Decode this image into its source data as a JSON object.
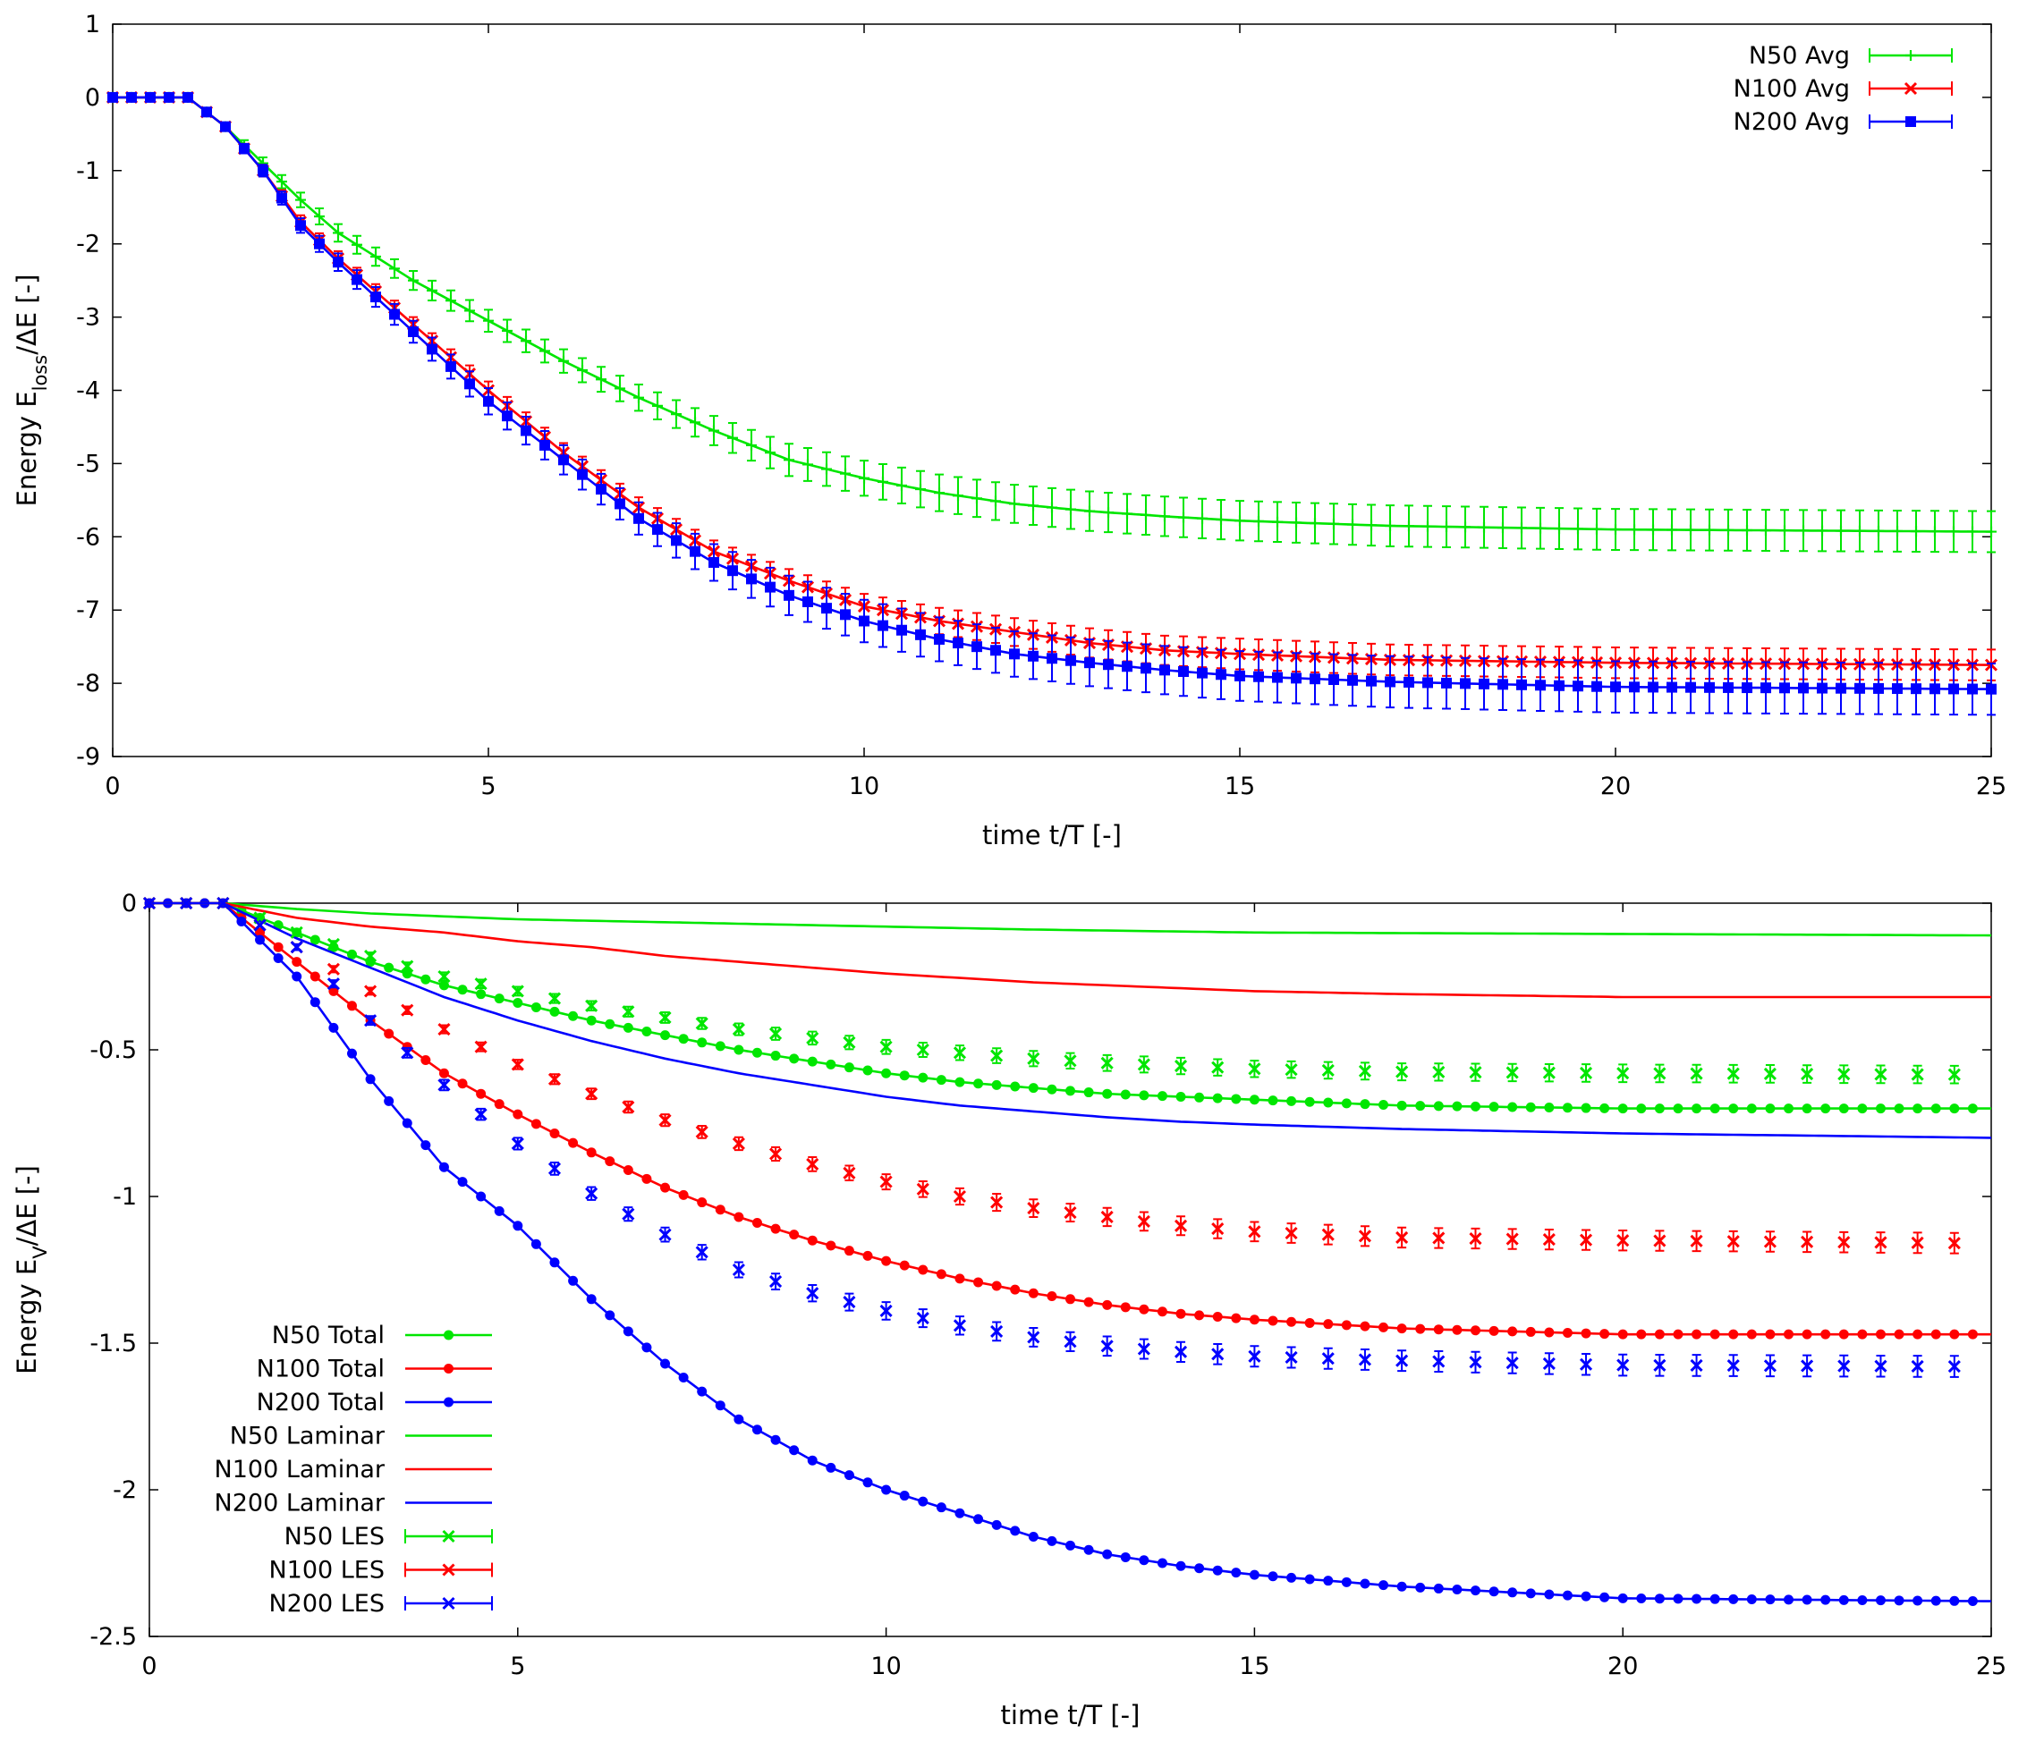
{
  "chart_data": [
    {
      "type": "line",
      "xlabel": "time t/T [-]",
      "ylabel_parts": [
        "Energy E",
        "loss",
        "/ΔE [-]"
      ],
      "xlim": [
        0,
        25
      ],
      "ylim": [
        -9,
        1
      ],
      "xticks": [
        "0",
        "5",
        "10",
        "15",
        "20",
        "25"
      ],
      "yticks": [
        "1",
        "0",
        "-1",
        "-2",
        "-3",
        "-4",
        "-5",
        "-6",
        "-7",
        "-8",
        "-9"
      ],
      "grid": false,
      "legend_position": "top-right",
      "series": [
        {
          "name": "N50 Avg",
          "color": "#00e600",
          "marker": "plus",
          "error_bars": true,
          "x": [
            0,
            1,
            1.5,
            2,
            2.5,
            3,
            4,
            5,
            6,
            7,
            8,
            9,
            10,
            11,
            12,
            13,
            14,
            15,
            17,
            20,
            25
          ],
          "y": [
            0,
            0,
            -0.4,
            -0.9,
            -1.4,
            -1.85,
            -2.5,
            -3.05,
            -3.6,
            -4.1,
            -4.55,
            -4.95,
            -5.2,
            -5.4,
            -5.55,
            -5.65,
            -5.72,
            -5.78,
            -5.85,
            -5.9,
            -5.93
          ],
          "error": [
            0,
            0,
            0.05,
            0.08,
            0.1,
            0.12,
            0.13,
            0.15,
            0.16,
            0.18,
            0.2,
            0.22,
            0.24,
            0.25,
            0.26,
            0.27,
            0.27,
            0.27,
            0.28,
            0.28,
            0.28
          ]
        },
        {
          "name": "N100 Avg",
          "color": "#ff0000",
          "marker": "cross",
          "error_bars": true,
          "x": [
            0,
            1,
            1.5,
            2,
            2.5,
            3,
            4,
            5,
            6,
            7,
            8,
            9,
            10,
            11,
            12,
            13,
            14,
            15,
            17,
            20,
            25
          ],
          "y": [
            0,
            0,
            -0.4,
            -1.0,
            -1.7,
            -2.2,
            -3.1,
            -4.0,
            -4.85,
            -5.6,
            -6.2,
            -6.6,
            -6.95,
            -7.15,
            -7.3,
            -7.45,
            -7.55,
            -7.6,
            -7.68,
            -7.72,
            -7.75
          ],
          "error": [
            0,
            0,
            0.05,
            0.08,
            0.09,
            0.1,
            0.1,
            0.12,
            0.13,
            0.14,
            0.15,
            0.16,
            0.17,
            0.18,
            0.19,
            0.2,
            0.2,
            0.21,
            0.21,
            0.21,
            0.21
          ]
        },
        {
          "name": "N200 Avg",
          "color": "#0000ff",
          "marker": "square",
          "error_bars": true,
          "x": [
            0,
            1,
            1.5,
            2,
            2.5,
            3,
            4,
            5,
            6,
            7,
            8,
            9,
            10,
            11,
            12,
            13,
            14,
            15,
            17,
            20,
            25
          ],
          "y": [
            0,
            0,
            -0.4,
            -1.0,
            -1.75,
            -2.25,
            -3.2,
            -4.15,
            -4.95,
            -5.75,
            -6.35,
            -6.8,
            -7.15,
            -7.4,
            -7.6,
            -7.72,
            -7.82,
            -7.9,
            -7.98,
            -8.05,
            -8.08
          ],
          "error": [
            0,
            0,
            0.05,
            0.08,
            0.1,
            0.12,
            0.15,
            0.18,
            0.2,
            0.22,
            0.25,
            0.27,
            0.29,
            0.3,
            0.31,
            0.32,
            0.33,
            0.34,
            0.35,
            0.35,
            0.35
          ]
        }
      ]
    },
    {
      "type": "line",
      "xlabel": "time t/T [-]",
      "ylabel_parts": [
        "Energy E",
        "V",
        "/ΔE [-]"
      ],
      "xlim": [
        0,
        25
      ],
      "ylim": [
        -2.5,
        0
      ],
      "xticks": [
        "0",
        "5",
        "10",
        "15",
        "20",
        "25"
      ],
      "yticks": [
        "0",
        "-0.5",
        "-1",
        "-1.5",
        "-2",
        "-2.5"
      ],
      "grid": false,
      "legend_position": "bottom-left",
      "series": [
        {
          "name": "N50 Total",
          "color": "#00e600",
          "style": "line-dots",
          "x": [
            0,
            1,
            2,
            3,
            4,
            5,
            6,
            7,
            8,
            9,
            10,
            11,
            12,
            13,
            14,
            15,
            17,
            20,
            25
          ],
          "y": [
            0,
            0,
            -0.1,
            -0.2,
            -0.28,
            -0.34,
            -0.4,
            -0.45,
            -0.5,
            -0.54,
            -0.58,
            -0.61,
            -0.63,
            -0.65,
            -0.66,
            -0.67,
            -0.69,
            -0.7,
            -0.7
          ]
        },
        {
          "name": "N100 Total",
          "color": "#ff0000",
          "style": "line-dots",
          "x": [
            0,
            1,
            2,
            3,
            4,
            5,
            6,
            7,
            8,
            9,
            10,
            11,
            12,
            13,
            14,
            15,
            17,
            20,
            25
          ],
          "y": [
            0,
            0,
            -0.2,
            -0.4,
            -0.58,
            -0.72,
            -0.85,
            -0.97,
            -1.07,
            -1.15,
            -1.22,
            -1.28,
            -1.33,
            -1.37,
            -1.4,
            -1.42,
            -1.45,
            -1.47,
            -1.47
          ]
        },
        {
          "name": "N200 Total",
          "color": "#0000ff",
          "style": "line-dots",
          "x": [
            0,
            1,
            2,
            3,
            4,
            5,
            6,
            7,
            8,
            9,
            10,
            11,
            12,
            13,
            14,
            15,
            17,
            20,
            25
          ],
          "y": [
            0,
            0,
            -0.25,
            -0.6,
            -0.9,
            -1.1,
            -1.35,
            -1.57,
            -1.76,
            -1.9,
            -2.0,
            -2.08,
            -2.16,
            -2.22,
            -2.26,
            -2.29,
            -2.33,
            -2.37,
            -2.38
          ]
        },
        {
          "name": "N50 Laminar",
          "color": "#00e600",
          "style": "line",
          "x": [
            0,
            1,
            2,
            3,
            4,
            5,
            6,
            7,
            8,
            10,
            12,
            15,
            20,
            25
          ],
          "y": [
            0,
            0,
            -0.02,
            -0.035,
            -0.045,
            -0.055,
            -0.06,
            -0.065,
            -0.07,
            -0.08,
            -0.09,
            -0.1,
            -0.105,
            -0.11
          ]
        },
        {
          "name": "N100 Laminar",
          "color": "#ff0000",
          "style": "line",
          "x": [
            0,
            1,
            2,
            3,
            4,
            5,
            6,
            7,
            8,
            10,
            12,
            15,
            17,
            20,
            25
          ],
          "y": [
            0,
            0,
            -0.05,
            -0.08,
            -0.1,
            -0.13,
            -0.15,
            -0.18,
            -0.2,
            -0.24,
            -0.27,
            -0.3,
            -0.31,
            -0.32,
            -0.32
          ]
        },
        {
          "name": "N200 Laminar",
          "color": "#0000ff",
          "style": "line",
          "x": [
            0,
            1,
            2,
            3,
            4,
            5,
            6,
            7,
            8,
            9,
            10,
            11,
            12,
            13,
            14,
            15,
            17,
            20,
            25
          ],
          "y": [
            0,
            0,
            -0.12,
            -0.22,
            -0.32,
            -0.4,
            -0.47,
            -0.53,
            -0.58,
            -0.62,
            -0.66,
            -0.69,
            -0.71,
            -0.73,
            -0.745,
            -0.755,
            -0.77,
            -0.785,
            -0.8
          ]
        },
        {
          "name": "N50 LES",
          "color": "#00e600",
          "style": "errorbar-cross",
          "x": [
            0,
            1,
            2,
            3,
            4,
            5,
            6,
            7,
            8,
            9,
            10,
            11,
            12,
            13,
            14,
            15,
            17,
            20,
            25
          ],
          "y": [
            0,
            0,
            -0.1,
            -0.18,
            -0.25,
            -0.3,
            -0.35,
            -0.39,
            -0.43,
            -0.46,
            -0.49,
            -0.51,
            -0.53,
            -0.545,
            -0.555,
            -0.565,
            -0.575,
            -0.58,
            -0.585
          ],
          "error": [
            0,
            0,
            0.01,
            0.012,
            0.014,
            0.015,
            0.016,
            0.018,
            0.02,
            0.022,
            0.024,
            0.025,
            0.026,
            0.027,
            0.028,
            0.028,
            0.029,
            0.03,
            0.03
          ]
        },
        {
          "name": "N100 LES",
          "color": "#ff0000",
          "style": "errorbar-cross",
          "x": [
            0,
            1,
            2,
            3,
            4,
            5,
            6,
            7,
            8,
            9,
            10,
            11,
            12,
            13,
            14,
            15,
            17,
            20,
            25
          ],
          "y": [
            0,
            0,
            -0.15,
            -0.3,
            -0.43,
            -0.55,
            -0.65,
            -0.74,
            -0.82,
            -0.89,
            -0.95,
            -1.0,
            -1.04,
            -1.07,
            -1.1,
            -1.12,
            -1.14,
            -1.15,
            -1.16
          ],
          "error": [
            0,
            0,
            0.01,
            0.012,
            0.014,
            0.016,
            0.018,
            0.02,
            0.022,
            0.024,
            0.026,
            0.028,
            0.03,
            0.031,
            0.032,
            0.033,
            0.034,
            0.034,
            0.035
          ]
        },
        {
          "name": "N200 LES",
          "color": "#0000ff",
          "style": "errorbar-cross",
          "x": [
            0,
            1,
            2,
            3,
            4,
            5,
            6,
            7,
            8,
            9,
            10,
            11,
            12,
            13,
            14,
            15,
            17,
            20,
            25
          ],
          "y": [
            0,
            0,
            -0.15,
            -0.4,
            -0.62,
            -0.82,
            -0.99,
            -1.13,
            -1.25,
            -1.33,
            -1.39,
            -1.44,
            -1.48,
            -1.51,
            -1.53,
            -1.545,
            -1.56,
            -1.575,
            -1.58
          ],
          "error": [
            0,
            0,
            0.01,
            0.015,
            0.018,
            0.02,
            0.022,
            0.024,
            0.026,
            0.028,
            0.03,
            0.031,
            0.032,
            0.033,
            0.034,
            0.035,
            0.035,
            0.036,
            0.036
          ]
        }
      ]
    }
  ]
}
